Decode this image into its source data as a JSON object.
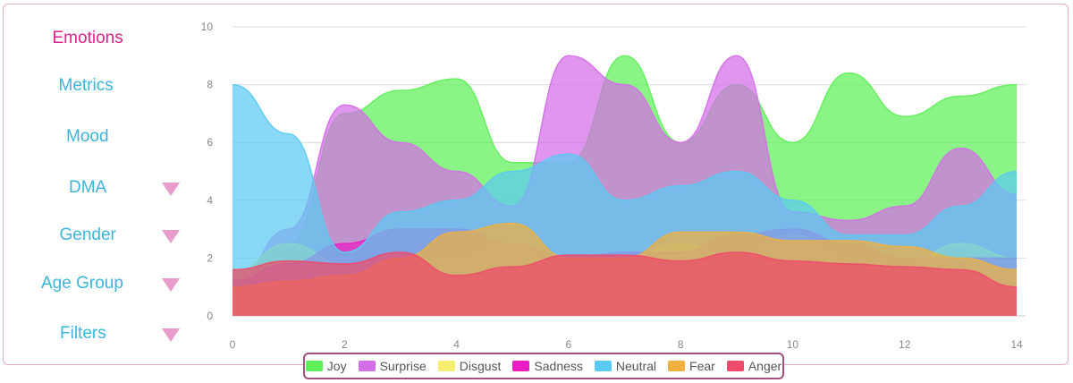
{
  "sidebar": {
    "items": [
      {
        "label": "Emotions",
        "active": true,
        "dropdown": false
      },
      {
        "label": "Metrics",
        "active": false,
        "dropdown": false
      },
      {
        "label": "Mood",
        "active": false,
        "dropdown": false
      },
      {
        "label": "DMA",
        "active": false,
        "dropdown": true
      },
      {
        "label": "Gender",
        "active": false,
        "dropdown": true
      },
      {
        "label": "Age Group",
        "active": false,
        "dropdown": true
      },
      {
        "label": "Filters",
        "active": false,
        "dropdown": true
      }
    ],
    "dropdown_icon": "triangle-down-icon"
  },
  "colors": {
    "active_nav": "#e0218a",
    "nav": "#3db4dc",
    "frame": "#e8a6cc",
    "legend_border": "#a2507e"
  },
  "chart_data": {
    "type": "area",
    "title": "",
    "xlabel": "",
    "ylabel": "",
    "xlim": [
      0,
      14
    ],
    "ylim": [
      0,
      10
    ],
    "x_ticks": [
      0,
      2,
      4,
      6,
      8,
      10,
      12,
      14
    ],
    "y_ticks": [
      0,
      2,
      4,
      6,
      8,
      10
    ],
    "grid": "horizontal",
    "legend_position": "bottom-center",
    "x": [
      0,
      1,
      2,
      3,
      4,
      5,
      6,
      7,
      8,
      9,
      10,
      11,
      12,
      13,
      14
    ],
    "series": [
      {
        "name": "Joy",
        "color": "#5ef058",
        "values": [
          1.5,
          2.5,
          7.0,
          7.8,
          8.2,
          5.3,
          5.3,
          9.0,
          6.0,
          8.0,
          6.0,
          8.4,
          6.9,
          7.6,
          8.0
        ]
      },
      {
        "name": "Surprise",
        "color": "#d46ee8",
        "values": [
          1.0,
          3.0,
          7.3,
          6.0,
          5.0,
          3.8,
          9.0,
          8.0,
          6.0,
          9.0,
          3.6,
          3.3,
          3.8,
          5.8,
          4.2
        ]
      },
      {
        "name": "Disgust",
        "color": "#f5ee6e",
        "values": [
          1.5,
          2.5,
          1.8,
          2.0,
          2.0,
          2.5,
          1.5,
          2.0,
          2.5,
          2.0,
          2.8,
          2.0,
          1.8,
          2.5,
          2.0
        ]
      },
      {
        "name": "Sadness",
        "color": "#ea1ec4",
        "values": [
          1.2,
          1.8,
          2.5,
          3.0,
          3.0,
          2.5,
          2.0,
          2.2,
          2.2,
          2.8,
          3.0,
          2.5,
          2.0,
          2.0,
          2.0
        ]
      },
      {
        "name": "Neutral",
        "color": "#5bcaf2",
        "values": [
          8.0,
          6.3,
          2.2,
          3.6,
          4.0,
          5.0,
          5.6,
          4.0,
          4.5,
          5.0,
          4.0,
          2.8,
          2.8,
          3.8,
          5.0
        ]
      },
      {
        "name": "Fear",
        "color": "#f0b040",
        "values": [
          1.0,
          1.2,
          1.4,
          2.0,
          2.9,
          3.2,
          2.0,
          2.0,
          2.9,
          2.9,
          2.6,
          2.6,
          2.4,
          2.0,
          1.6
        ]
      },
      {
        "name": "Anger",
        "color": "#ee4a6a",
        "values": [
          1.6,
          1.9,
          1.8,
          2.2,
          1.4,
          1.7,
          2.1,
          2.1,
          1.9,
          2.2,
          1.9,
          1.8,
          1.7,
          1.6,
          1.0
        ]
      }
    ]
  }
}
